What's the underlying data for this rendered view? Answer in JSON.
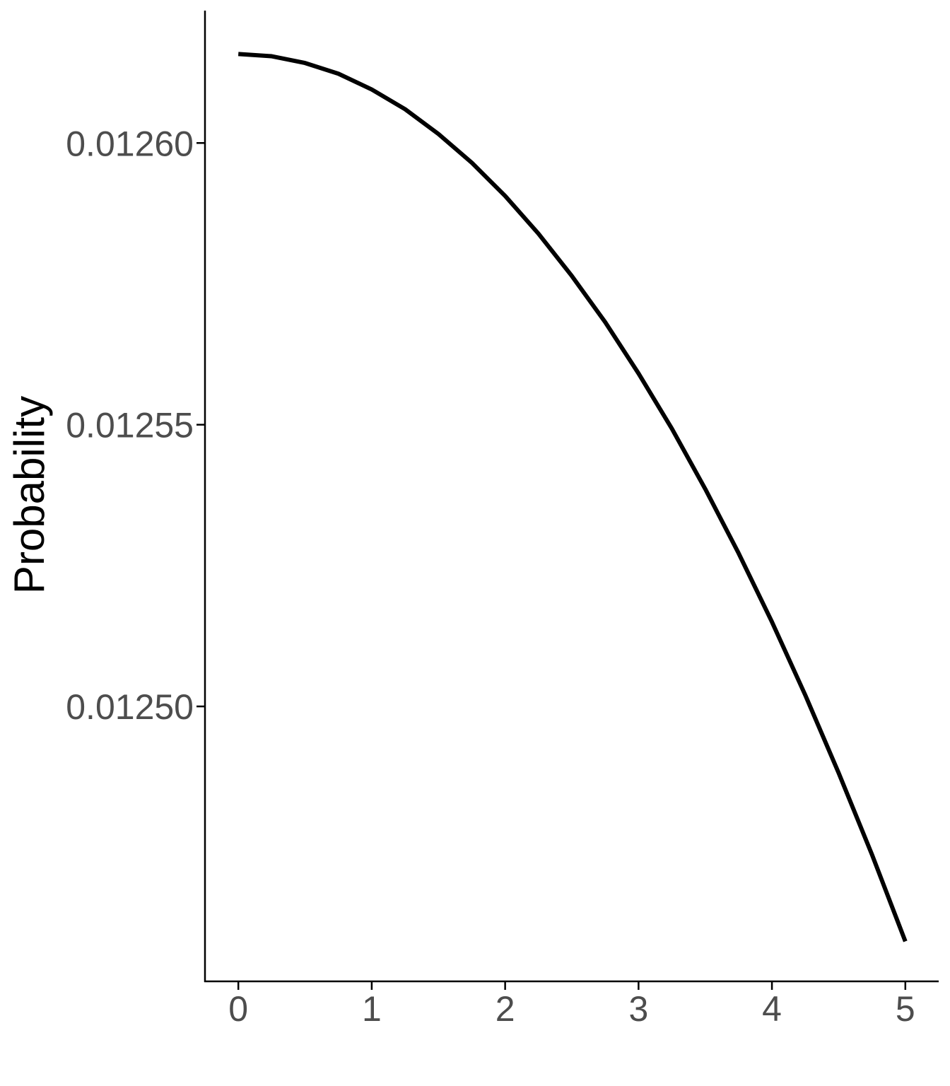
{
  "chart_data": {
    "type": "line",
    "y_label": "Probability",
    "x": [
      0,
      0.25,
      0.5,
      0.75,
      1,
      1.25,
      1.5,
      1.75,
      2,
      2.25,
      2.5,
      2.75,
      3,
      3.25,
      3.5,
      3.75,
      4,
      4.25,
      4.5,
      4.75,
      5
    ],
    "series": [
      {
        "color": "#000000",
        "values": [
          0.0126158,
          0.0126154,
          0.0126142,
          0.0126123,
          0.0126095,
          0.012606,
          0.0126016,
          0.0125965,
          0.0125906,
          0.0125839,
          0.0125764,
          0.0125682,
          0.0125591,
          0.0125493,
          0.0125386,
          0.0125272,
          0.012515,
          0.012502,
          0.0124882,
          0.0124737,
          0.0124583
        ]
      }
    ],
    "xlim": [
      -0.25,
      5.25
    ],
    "xticks": [
      0,
      1,
      2,
      3,
      4,
      5
    ],
    "ylim": [
      0.0124512,
      0.0126235
    ],
    "yticks": [
      {
        "value": 0.0125,
        "label": "0.01250"
      },
      {
        "value": 0.01255,
        "label": "0.01255"
      },
      {
        "value": 0.0126,
        "label": "0.01260"
      }
    ],
    "grid": false
  }
}
